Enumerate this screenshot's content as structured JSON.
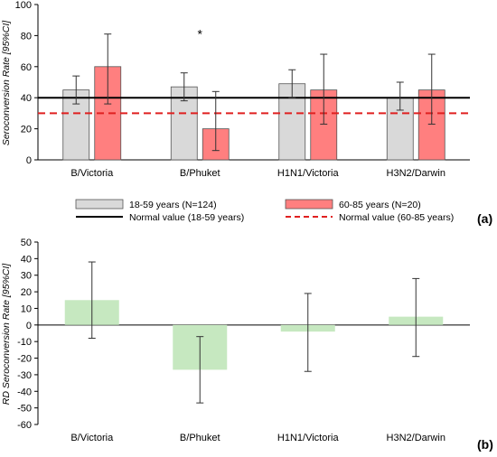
{
  "chart_data": [
    {
      "type": "bar",
      "panel_label": "(a)",
      "ylabel": "Seroconversion Rate [95%CI]",
      "ylim": [
        0,
        100
      ],
      "yticks": [
        0,
        20,
        40,
        60,
        80,
        100
      ],
      "grid": false,
      "categories": [
        "B/Victoria",
        "B/Phuket",
        "H1N1/Victoria",
        "H3N2/Darwin"
      ],
      "series": [
        {
          "name": "18-59 years (N=124)",
          "color": "#d9d9d9",
          "values": [
            45,
            47,
            49,
            40
          ],
          "ci_low": [
            36,
            38,
            40,
            32
          ],
          "ci_high": [
            54,
            56,
            58,
            50
          ]
        },
        {
          "name": "60-85 years (N=20)",
          "color": "#ff7f7f",
          "values": [
            60,
            20,
            45,
            45
          ],
          "ci_low": [
            36,
            6,
            23,
            23
          ],
          "ci_high": [
            81,
            44,
            68,
            68
          ]
        }
      ],
      "reference_lines": [
        {
          "name": "Normal value (18-59 years)",
          "value": 40,
          "color": "#000000",
          "style": "solid"
        },
        {
          "name": "Normal value (60-85 years)",
          "value": 30,
          "color": "#e02020",
          "style": "dashed"
        }
      ],
      "annotations": [
        {
          "text": "*",
          "category": "B/Phuket",
          "y": 81
        }
      ],
      "legend_position": "bottom"
    },
    {
      "type": "bar",
      "panel_label": "(b)",
      "ylabel": "RD Seroconversion Rate [95%CI]",
      "ylim": [
        -60,
        50
      ],
      "yticks": [
        50,
        40,
        30,
        20,
        10,
        0,
        -10,
        -20,
        -30,
        -40,
        -50,
        -60
      ],
      "grid": false,
      "categories": [
        "B/Victoria",
        "B/Phuket",
        "H1N1/Victoria",
        "H3N2/Darwin"
      ],
      "series": [
        {
          "color": "#c6e8c0",
          "values": [
            15,
            -27,
            -4,
            5
          ],
          "ci_low": [
            -8,
            -47,
            -28,
            -19
          ],
          "ci_high": [
            38,
            -7,
            19,
            28
          ]
        }
      ]
    }
  ]
}
